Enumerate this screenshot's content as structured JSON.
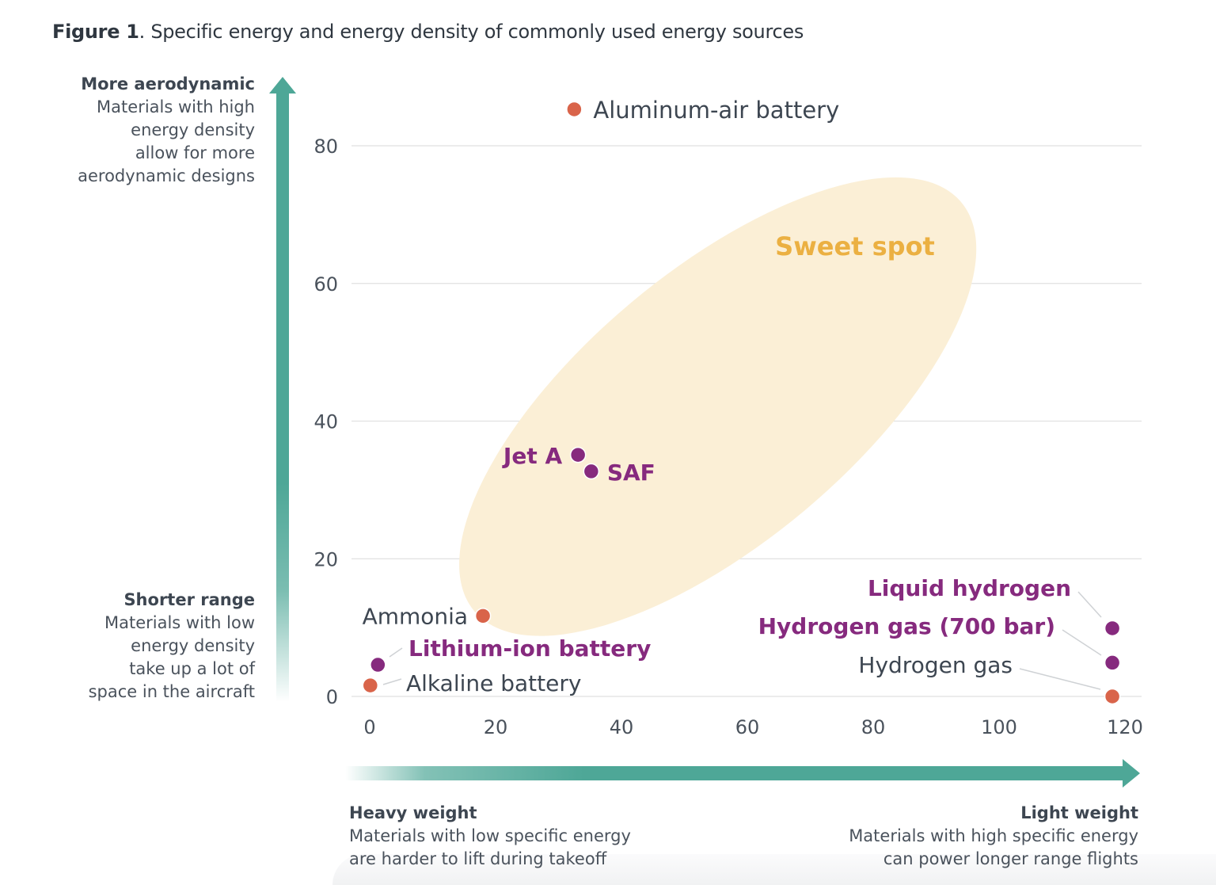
{
  "figure": {
    "label": "Figure 1",
    "caption": ". Specific energy and energy density of commonly used energy sources"
  },
  "y_annotations": {
    "top": {
      "heading": "More aerodynamic",
      "lines": [
        "Materials with high",
        "energy density",
        "allow for more",
        "aerodynamic designs"
      ]
    },
    "bottom": {
      "heading": "Shorter range",
      "lines": [
        "Materials with low",
        "energy density",
        "take up a lot of",
        "space in the aircraft"
      ]
    }
  },
  "x_annotations": {
    "left": {
      "heading": "Heavy weight",
      "lines": [
        "Materials with low specific energy",
        "are harder to lift during takeoff"
      ]
    },
    "right": {
      "heading": "Light weight",
      "lines": [
        "Materials with high specific energy",
        "can power longer range flights"
      ]
    }
  },
  "colors": {
    "orange": "#d9644a",
    "purple": "#862a7e",
    "teal": "#4ea797",
    "sweet_fill": "#fbefd6",
    "sweet_text": "#ebb042",
    "dark_text": "#3d4651",
    "grid": "#e1e1e1"
  },
  "chart_data": {
    "type": "scatter",
    "title": "Specific energy and energy density of commonly used energy sources",
    "xlabel": "Specific energy",
    "ylabel": "Energy density",
    "xlim": [
      0,
      120
    ],
    "ylim": [
      0,
      80
    ],
    "x_ticks": [
      0,
      20,
      40,
      60,
      80,
      100,
      120
    ],
    "y_ticks": [
      0,
      20,
      40,
      60,
      80
    ],
    "grid": "horizontal",
    "points": [
      {
        "name": "Aluminum-air battery",
        "x": 32.5,
        "y": 85.3,
        "color": "orange",
        "label_style": "dark",
        "label_pos": "right"
      },
      {
        "name": "Jet A",
        "x": 33.1,
        "y": 35.1,
        "color": "purple",
        "label_style": "purple-bold",
        "label_pos": "left"
      },
      {
        "name": "SAF",
        "x": 35.2,
        "y": 32.7,
        "color": "purple",
        "label_style": "purple-bold",
        "label_pos": "right"
      },
      {
        "name": "Ammonia",
        "x": 18.0,
        "y": 11.7,
        "color": "orange",
        "label_style": "dark",
        "label_pos": "left"
      },
      {
        "name": "Lithium-ion battery",
        "x": 1.3,
        "y": 4.6,
        "color": "purple",
        "label_style": "purple-bold",
        "label_pos": "leader-right"
      },
      {
        "name": "Alkaline battery",
        "x": 0.1,
        "y": 1.6,
        "color": "orange",
        "label_style": "dark",
        "label_pos": "leader-right"
      },
      {
        "name": "Liquid hydrogen",
        "x": 118.0,
        "y": 9.9,
        "color": "purple",
        "label_style": "purple-bold",
        "label_pos": "leader-left"
      },
      {
        "name": "Hydrogen gas (700 bar)",
        "x": 118.0,
        "y": 4.9,
        "color": "purple",
        "label_style": "purple-bold",
        "label_pos": "leader-left"
      },
      {
        "name": "Hydrogen gas",
        "x": 118.0,
        "y": 0.0,
        "color": "orange",
        "label_style": "dark",
        "label_pos": "leader-left"
      }
    ],
    "annotations": [
      {
        "text": "Sweet spot",
        "type": "ellipse-region",
        "center": [
          55.3,
          42.1
        ],
        "semi_major": 50.5,
        "semi_minor": 21.5,
        "angle_deg": 40
      }
    ],
    "axis_arrows": {
      "y": "More aerodynamic (up) / Shorter range (down)",
      "x": "Heavy weight (left) / Light weight (right)"
    }
  }
}
